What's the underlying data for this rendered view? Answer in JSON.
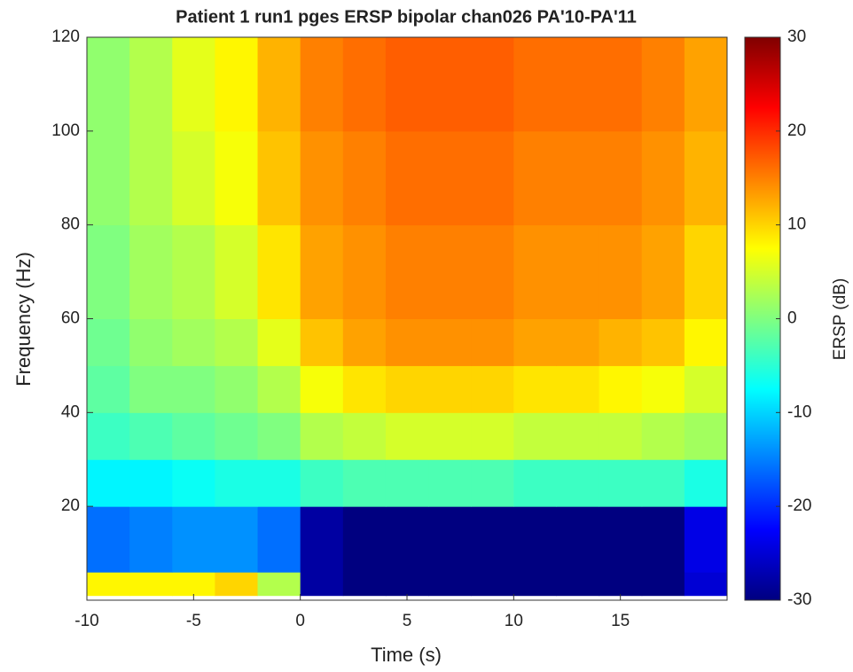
{
  "chart_data": {
    "type": "heatmap",
    "title": "Patient 1  run1 pges ERSP bipolar chan026 PA'10-PA'11",
    "x_label": "Time (s)",
    "y_label": "Frequency (Hz)",
    "colorbar_label": "ERSP (dB)",
    "colormap": "jet",
    "x_edges": [
      -10,
      -8,
      -6,
      -4,
      -2,
      0,
      2,
      4,
      6,
      8,
      10,
      12,
      14,
      16,
      18,
      20
    ],
    "y_edges": [
      1,
      6,
      20,
      30,
      40,
      50,
      60,
      80,
      100,
      120
    ],
    "z": [
      [
        8,
        8,
        8,
        10,
        3,
        -28,
        -30,
        -30,
        -30,
        -30,
        -30,
        -30,
        -30,
        -30,
        -25
      ],
      [
        -16,
        -15,
        -14,
        -14,
        -16,
        -28,
        -30,
        -30,
        -30,
        -30,
        -30,
        -30,
        -30,
        -30,
        -24
      ],
      [
        -8,
        -8,
        -7,
        -6,
        -6,
        -4,
        -3,
        -3,
        -3,
        -3,
        -4,
        -4,
        -4,
        -4,
        -6
      ],
      [
        -4,
        -3,
        -2,
        -1,
        0,
        3,
        4,
        5,
        5,
        5,
        4,
        4,
        4,
        3,
        2
      ],
      [
        -2,
        0,
        0,
        1,
        3,
        7,
        9,
        10,
        10,
        10,
        9,
        9,
        8,
        7,
        5
      ],
      [
        -1,
        1,
        2,
        3,
        6,
        11,
        13,
        14,
        14,
        14,
        13,
        13,
        12,
        11,
        8
      ],
      [
        0,
        2,
        3,
        5,
        9,
        13,
        14,
        15,
        15,
        15,
        14,
        14,
        14,
        13,
        10
      ],
      [
        1,
        3,
        5,
        7,
        11,
        14,
        15,
        16,
        16,
        16,
        15,
        15,
        15,
        14,
        12
      ],
      [
        1,
        3,
        6,
        8,
        12,
        15,
        16,
        17,
        17,
        17,
        16,
        16,
        16,
        15,
        13
      ]
    ],
    "xlim": [
      -10,
      20
    ],
    "ylim": [
      0,
      120
    ],
    "clim": [
      -30,
      30
    ],
    "xticks": [
      -10,
      -5,
      0,
      5,
      10,
      15
    ],
    "yticks": [
      20,
      40,
      60,
      80,
      100,
      120
    ],
    "cticks": [
      -30,
      -20,
      -10,
      0,
      10,
      20,
      30
    ]
  }
}
